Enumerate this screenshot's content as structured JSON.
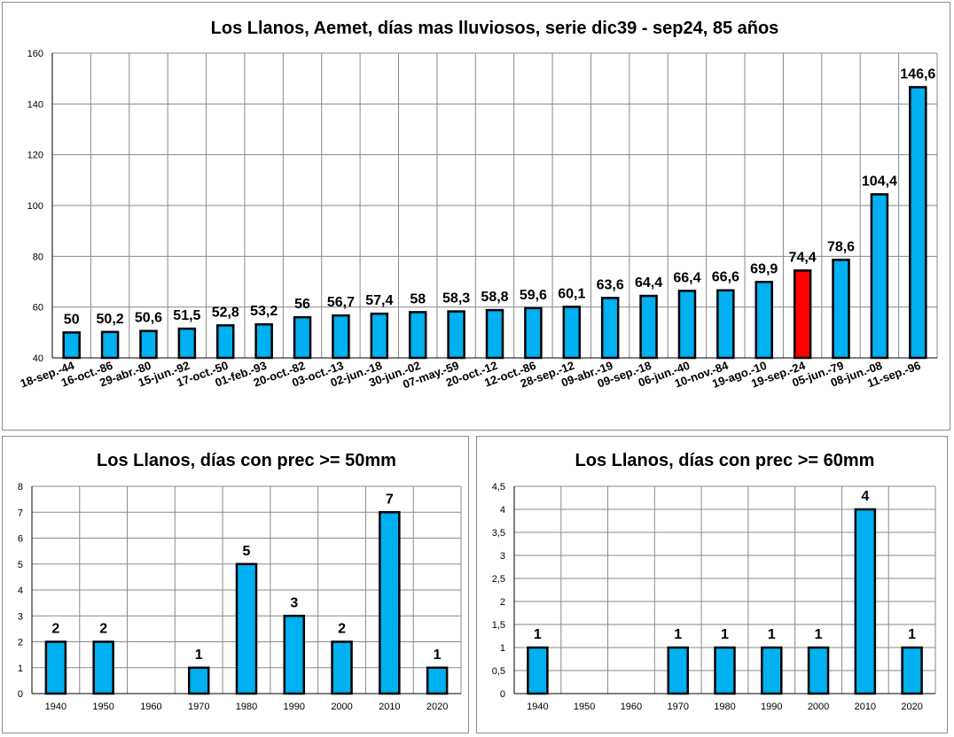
{
  "chart_data": [
    {
      "id": "top",
      "type": "bar",
      "title": "Los Llanos, Aemet, días mas lluviosos, serie dic39 - sep24, 85 años",
      "xlabel": "",
      "ylabel": "",
      "ylim": [
        40,
        160
      ],
      "yticks": [
        "40",
        "60",
        "80",
        "100",
        "120",
        "140",
        "160"
      ],
      "grid": true,
      "categories": [
        "18-sep.-44",
        "16-oct.-86",
        "29-abr.-80",
        "15-jun.-92",
        "17-oct.-50",
        "01-feb.-93",
        "20-oct.-82",
        "03-oct.-13",
        "02-jun.-18",
        "30-jun.-02",
        "07-may.-59",
        "20-oct.-12",
        "12-oct.-86",
        "28-sep.-12",
        "09-abr.-19",
        "09-sep.-18",
        "06-jun.-40",
        "10-nov.-84",
        "19-ago.-10",
        "19-sep.-24",
        "05-jun.-79",
        "08-jun.-08",
        "11-sep.-96"
      ],
      "values": [
        50,
        50.2,
        50.6,
        51.5,
        52.8,
        53.2,
        56,
        56.7,
        57.4,
        58,
        58.3,
        58.8,
        59.6,
        60.1,
        63.6,
        64.4,
        66.4,
        66.6,
        69.9,
        74.4,
        78.6,
        104.4,
        146.6
      ],
      "value_labels": [
        "50",
        "50,2",
        "50,6",
        "51,5",
        "52,8",
        "53,2",
        "56",
        "56,7",
        "57,4",
        "58",
        "58,3",
        "58,8",
        "59,6",
        "60,1",
        "63,6",
        "64,4",
        "66,4",
        "66,6",
        "69,9",
        "74,4",
        "78,6",
        "104,4",
        "146,6"
      ],
      "bar_color": "#00b0f0",
      "highlight_index": 19,
      "highlight_color": "#ff0000"
    },
    {
      "id": "bl",
      "type": "bar",
      "title": "Los Llanos, días con prec >= 50mm",
      "xlabel": "",
      "ylabel": "",
      "ylim": [
        0,
        8
      ],
      "yticks": [
        "0",
        "1",
        "2",
        "3",
        "4",
        "5",
        "6",
        "7",
        "8"
      ],
      "grid": true,
      "categories": [
        "1940",
        "1950",
        "1960",
        "1970",
        "1980",
        "1990",
        "2000",
        "2010",
        "2020"
      ],
      "values": [
        2,
        2,
        0,
        1,
        5,
        3,
        2,
        7,
        1
      ],
      "value_labels": [
        "2",
        "2",
        "",
        "1",
        "5",
        "3",
        "2",
        "7",
        "1"
      ],
      "bar_color": "#00b0f0"
    },
    {
      "id": "br",
      "type": "bar",
      "title": "Los Llanos, días con prec >= 60mm",
      "xlabel": "",
      "ylabel": "",
      "ylim": [
        0,
        4.5
      ],
      "yticks": [
        "0",
        "0,5",
        "1",
        "1,5",
        "2",
        "2,5",
        "3",
        "3,5",
        "4",
        "4,5"
      ],
      "grid": true,
      "categories": [
        "1940",
        "1950",
        "1960",
        "1970",
        "1980",
        "1990",
        "2000",
        "2010",
        "2020"
      ],
      "values": [
        1,
        0,
        0,
        1,
        1,
        1,
        1,
        4,
        1
      ],
      "value_labels": [
        "1",
        "",
        "",
        "1",
        "1",
        "1",
        "1",
        "4",
        "1"
      ],
      "bar_color": "#00b0f0"
    }
  ]
}
